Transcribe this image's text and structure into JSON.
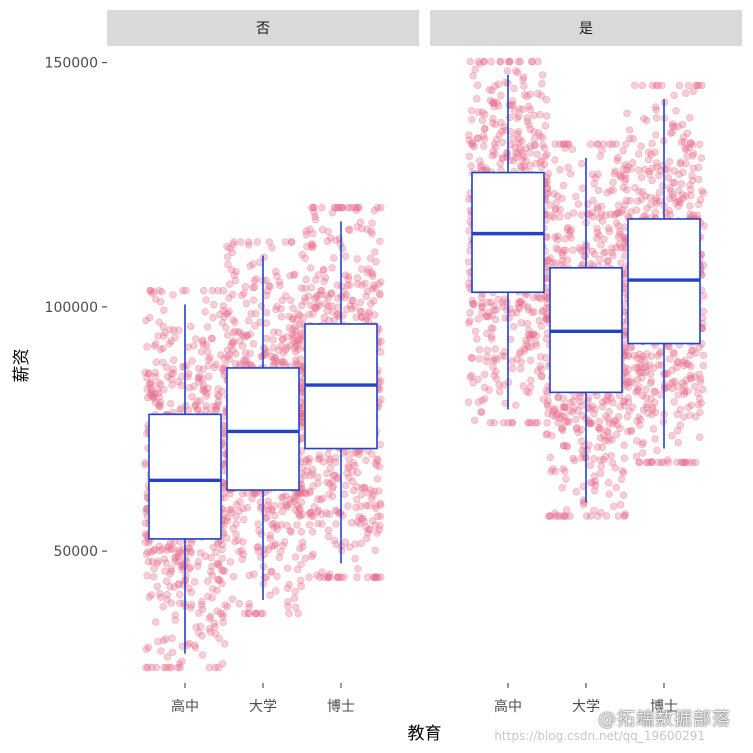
{
  "chart_data": {
    "type": "boxplot",
    "xlabel": "教育",
    "ylabel": "薪资",
    "ylim": [
      23000,
      153000
    ],
    "y_ticks": [
      50000,
      100000,
      150000
    ],
    "y_tick_labels": [
      "50000",
      "100000",
      "150000"
    ],
    "categories": [
      "高中",
      "大学",
      "博士"
    ],
    "facets": [
      {
        "name": "否",
        "boxes": [
          {
            "category": "高中",
            "min": 29000,
            "q1": 52500,
            "median": 64500,
            "q3": 78000,
            "max": 100500,
            "points": 650
          },
          {
            "category": "大学",
            "min": 40000,
            "q1": 62500,
            "median": 74500,
            "q3": 87500,
            "max": 110500,
            "points": 650
          },
          {
            "category": "博士",
            "min": 47500,
            "q1": 71000,
            "median": 84000,
            "q3": 96500,
            "max": 117500,
            "points": 650
          }
        ]
      },
      {
        "name": "是",
        "boxes": [
          {
            "category": "高中",
            "min": 79000,
            "q1": 103000,
            "median": 115000,
            "q3": 127500,
            "max": 147500,
            "points": 650
          },
          {
            "category": "大学",
            "min": 60000,
            "q1": 82500,
            "median": 95000,
            "q3": 108000,
            "max": 130500,
            "points": 650
          },
          {
            "category": "博士",
            "min": 71000,
            "q1": 92500,
            "median": 105500,
            "q3": 118000,
            "max": 142500,
            "points": 650
          }
        ]
      }
    ],
    "point_color": "#e8718d",
    "box_color": "#2043c9",
    "watermark": {
      "logo": "@拓端数据部落",
      "url": "https://blog.csdn.net/qq_19600291"
    }
  }
}
